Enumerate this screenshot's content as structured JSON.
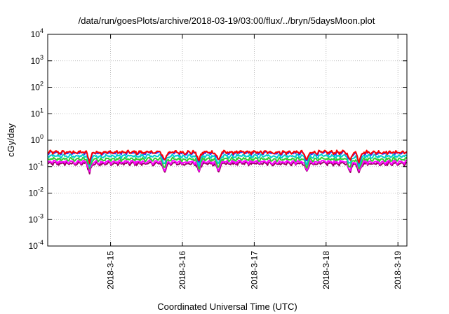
{
  "chart_data": {
    "type": "line",
    "title": "/data/run/goesPlots/archive/2018-03-19/03:00/flux/../bryn/5daysMoon.plot",
    "xlabel": "Coordinated Universal Time (UTC)",
    "ylabel": "cGy/day",
    "yscale": "log",
    "ylim": [
      0.0001,
      10000
    ],
    "xlim": [
      "2018-03-14T03:00",
      "2018-03-19T03:00"
    ],
    "grid": true,
    "y_ticks": [
      {
        "base": "10",
        "exp": "-4",
        "value": 0.0001
      },
      {
        "base": "10",
        "exp": "-3",
        "value": 0.001
      },
      {
        "base": "10",
        "exp": "-2",
        "value": 0.01
      },
      {
        "base": "10",
        "exp": "-1",
        "value": 0.1
      },
      {
        "base": "10",
        "exp": "0",
        "value": 1
      },
      {
        "base": "10",
        "exp": "1",
        "value": 10
      },
      {
        "base": "10",
        "exp": "2",
        "value": 100
      },
      {
        "base": "10",
        "exp": "3",
        "value": 1000
      },
      {
        "base": "10",
        "exp": "4",
        "value": 10000
      }
    ],
    "x_ticks": [
      {
        "label": "2018-3-15",
        "value": "2018-03-15T00:00"
      },
      {
        "label": "2018-3-16",
        "value": "2018-03-16T00:00"
      },
      {
        "label": "2018-3-17",
        "value": "2018-03-17T00:00"
      },
      {
        "label": "2018-3-18",
        "value": "2018-03-18T00:00"
      },
      {
        "label": "2018-3-19",
        "value": "2018-03-19T00:00"
      }
    ],
    "series_colors": [
      "#ff0000",
      "#3333ff",
      "#00cccc",
      "#33cc33",
      "#ff00ff",
      "#990066"
    ],
    "series": [
      {
        "color": "#ff0000",
        "baseline": 0.35
      },
      {
        "color": "#3333ff",
        "baseline": 0.33
      },
      {
        "color": "#00cccc",
        "baseline": 0.25
      },
      {
        "color": "#33cc33",
        "baseline": 0.19
      },
      {
        "color": "#ff00ff",
        "baseline": 0.15
      },
      {
        "color": "#990066",
        "baseline": 0.13
      }
    ],
    "dip_times": [
      "2018-03-14T17:00",
      "2018-03-15T18:00",
      "2018-03-16T05:30",
      "2018-03-16T12:00",
      "2018-03-17T17:30",
      "2018-03-18T08:00",
      "2018-03-18T11:00"
    ]
  }
}
